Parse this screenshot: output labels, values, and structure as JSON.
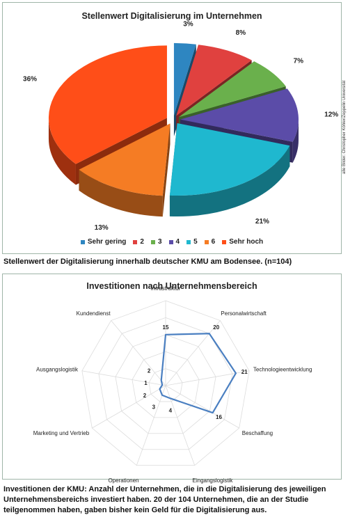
{
  "chart_data": [
    {
      "type": "pie",
      "title": "Stellenwert Digitalisierung im Unternehmen",
      "categories": [
        "Sehr gering",
        "2",
        "3",
        "4",
        "5",
        "6",
        "Sehr hoch"
      ],
      "values": [
        3,
        8,
        7,
        12,
        21,
        13,
        36
      ],
      "value_labels": [
        "3%",
        "8%",
        "7%",
        "12%",
        "21%",
        "13%",
        "36%"
      ],
      "colors": [
        "#2e86c1",
        "#e0413f",
        "#6ab04c",
        "#5b4ca8",
        "#1fb8cf",
        "#f57c24",
        "#ff4e18"
      ],
      "legend_position": "bottom",
      "exploded": true,
      "three_d": true
    },
    {
      "type": "radar",
      "title": "Investitionen nach Unternehmensbereich",
      "categories": [
        "Infrastruktur",
        "Personalwirtschaft",
        "Technologieentwicklung",
        "Beschaffung",
        "Eingangslogistik",
        "Operationen",
        "Marketing und Vertrieb",
        "Ausgangslogistik",
        "Kundendienst"
      ],
      "values": [
        15,
        20,
        21,
        16,
        4,
        3,
        2,
        1,
        2
      ],
      "value_labels": [
        "15",
        "20",
        "21",
        "16",
        "4",
        "3",
        "2",
        "1",
        "2"
      ],
      "rmax": 25,
      "series_color": "#4a7fc1",
      "grid": true
    }
  ],
  "captions": {
    "chart1": "Stellenwert der Digitalisierung innerhalb deutscher KMU am Bodensee. (n=104)",
    "chart2": "Investitionen der KMU: Anzahl der Unternehmen, die in die Digitalisierung des jeweiligen Unternehmensbereichs investiert haben. 20 der 104 Unternehmen, die an der Studie teilgenommen haben, gaben bisher kein Geld für die Digitalisierung aus."
  },
  "credit": "alle Bilder: Christopher Köhler/Zeppelin Universität"
}
